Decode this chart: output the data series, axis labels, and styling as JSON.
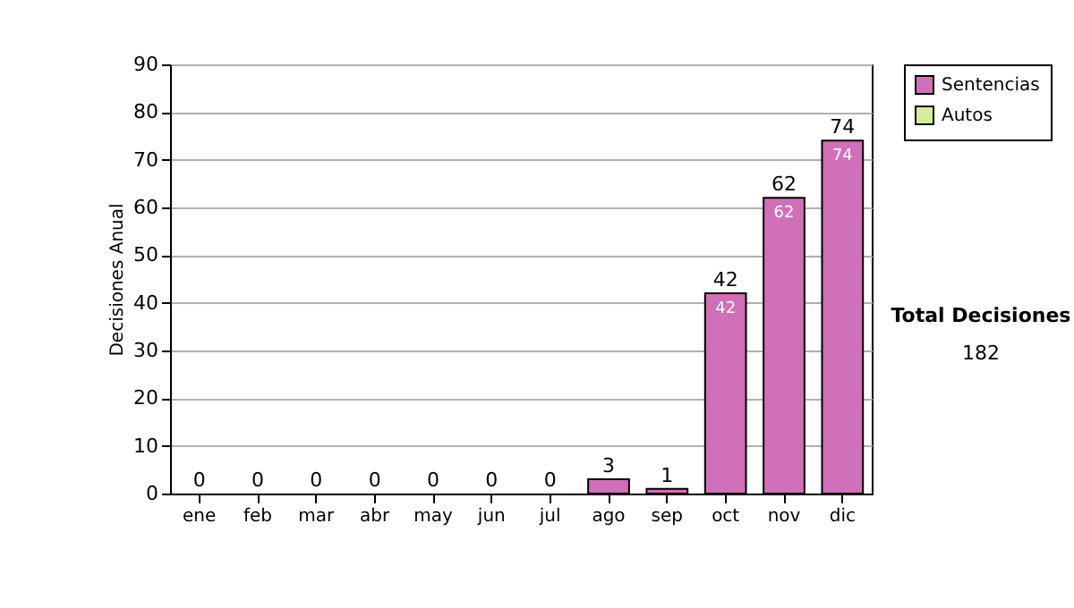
{
  "chart_data": {
    "type": "bar",
    "ylabel": "Decisiones Anual",
    "categories": [
      "ene",
      "feb",
      "mar",
      "abr",
      "may",
      "jun",
      "jul",
      "ago",
      "sep",
      "oct",
      "nov",
      "dic"
    ],
    "series": [
      {
        "name": "Sentencias",
        "color": "#d070b8",
        "values": [
          0,
          0,
          0,
          0,
          0,
          0,
          0,
          3,
          1,
          42,
          62,
          74
        ],
        "value_labels": [
          null,
          null,
          null,
          null,
          null,
          null,
          null,
          null,
          null,
          "42",
          "62",
          "74"
        ]
      },
      {
        "name": "Autos",
        "color": "#d4ec9c",
        "values": [
          0,
          0,
          0,
          0,
          0,
          0,
          0,
          0,
          0,
          0,
          0,
          0
        ]
      }
    ],
    "stacked": true,
    "totals": [
      "0",
      "0",
      "0",
      "0",
      "0",
      "0",
      "0",
      "3",
      "1",
      "42",
      "62",
      "74"
    ],
    "ylim": [
      0,
      90
    ],
    "yticks": [
      0,
      10,
      20,
      30,
      40,
      50,
      60,
      70,
      80,
      90
    ],
    "grid": "y",
    "legend": "right",
    "annotations": [
      "Total Decisiones",
      "182"
    ]
  }
}
